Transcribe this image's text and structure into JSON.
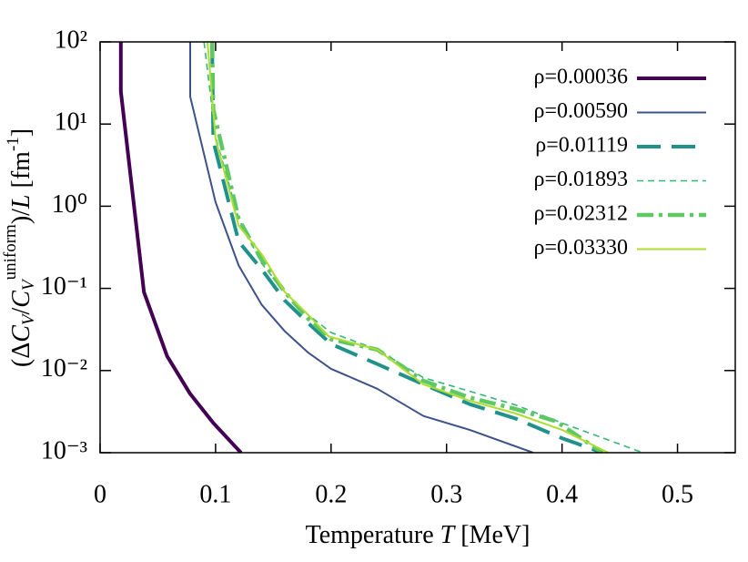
{
  "chart_data": {
    "type": "line",
    "xlabel": [
      "Temperature ",
      "T",
      " [MeV]"
    ],
    "ylabel": [
      "(Δ",
      "C",
      "V",
      "/",
      "C",
      "V",
      "uniform",
      ")/",
      "L",
      " [fm",
      "-1",
      "]"
    ],
    "xlim": [
      0,
      0.55
    ],
    "xticks": [
      0,
      0.1,
      0.2,
      0.3,
      0.4,
      0.5
    ],
    "ylim": [
      0.001,
      100
    ],
    "log_y": true,
    "yticks": [
      {
        "value": 100,
        "label": "10²"
      },
      {
        "value": 10,
        "label": "10¹"
      },
      {
        "value": 1,
        "label": "10⁰"
      },
      {
        "value": 0.1,
        "label": "10⁻¹"
      },
      {
        "value": 0.01,
        "label": "10⁻²"
      },
      {
        "value": 0.001,
        "label": "10⁻³"
      }
    ],
    "legend": "upper right",
    "series": [
      {
        "name": "ρ=0.00036",
        "color": "#440154",
        "linewidth": 4,
        "dash": "none",
        "x": [
          0.018,
          0.018,
          0.038,
          0.058,
          0.078,
          0.098,
          0.122
        ],
        "values": [
          100,
          25,
          0.09,
          0.015,
          0.0052,
          0.0023,
          0.001
        ]
      },
      {
        "name": "ρ=0.00590",
        "color": "#3b528b",
        "linewidth": 2,
        "dash": "none",
        "x": [
          0.078,
          0.078,
          0.1,
          0.12,
          0.14,
          0.16,
          0.18,
          0.2,
          0.24,
          0.28,
          0.32,
          0.375
        ],
        "values": [
          100,
          21.6,
          1.12,
          0.19,
          0.063,
          0.03,
          0.0166,
          0.0105,
          0.006,
          0.0028,
          0.0019,
          0.001
        ]
      },
      {
        "name": "ρ=0.01119",
        "color": "#21918c",
        "linewidth": 4,
        "dash": "26,12",
        "x": [
          0.097,
          0.098,
          0.12,
          0.14,
          0.16,
          0.18,
          0.2,
          0.24,
          0.28,
          0.32,
          0.36,
          0.4,
          0.435
        ],
        "values": [
          100,
          6.2,
          0.37,
          0.17,
          0.071,
          0.038,
          0.021,
          0.012,
          0.0068,
          0.0039,
          0.0026,
          0.0015,
          0.001
        ]
      },
      {
        "name": "ρ=0.01893",
        "color": "#35b779",
        "linewidth": 1.6,
        "dash": "7,5",
        "x": [
          0.09,
          0.1,
          0.12,
          0.14,
          0.16,
          0.18,
          0.2,
          0.24,
          0.28,
          0.32,
          0.36,
          0.4,
          0.47
        ],
        "values": [
          100,
          7,
          0.7,
          0.2,
          0.09,
          0.048,
          0.029,
          0.018,
          0.0082,
          0.0056,
          0.0038,
          0.0023,
          0.001
        ]
      },
      {
        "name": "ρ=0.02312",
        "color": "#5ec962",
        "linewidth": 4.5,
        "dash": "18,6,4,6",
        "x": [
          0.097,
          0.098,
          0.12,
          0.14,
          0.16,
          0.18,
          0.2,
          0.24,
          0.28,
          0.32,
          0.36,
          0.395,
          0.435
        ],
        "values": [
          100,
          15,
          0.7,
          0.22,
          0.09,
          0.043,
          0.024,
          0.018,
          0.0075,
          0.0047,
          0.0034,
          0.0024,
          0.001
        ]
      },
      {
        "name": "ρ=0.03330",
        "color": "#addc30",
        "linewidth": 2,
        "dash": "none",
        "x": [
          0.093,
          0.1,
          0.12,
          0.14,
          0.16,
          0.18,
          0.198,
          0.24,
          0.28,
          0.32,
          0.36,
          0.4,
          0.44
        ],
        "values": [
          100,
          6.6,
          0.58,
          0.26,
          0.09,
          0.048,
          0.026,
          0.018,
          0.0068,
          0.0043,
          0.003,
          0.0019,
          0.001
        ]
      }
    ]
  }
}
